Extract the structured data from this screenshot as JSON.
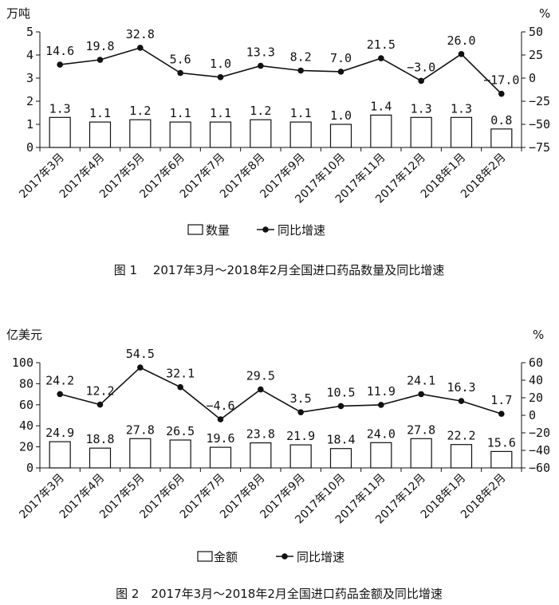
{
  "chart_data": [
    {
      "type": "bar",
      "title": "图 1　 2017年3月～2018年2月全国进口药品数量及同比增速",
      "ylabel": "万吨",
      "y2label": "%",
      "categories": [
        "2017年3月",
        "2017年4月",
        "2017年5月",
        "2017年6月",
        "2017年7月",
        "2017年8月",
        "2017年9月",
        "2017年10月",
        "2017年11月",
        "2017年12月",
        "2018年1月",
        "2018年2月"
      ],
      "series": [
        {
          "name": "数量",
          "type": "bar",
          "axis": "left",
          "values": [
            1.3,
            1.1,
            1.2,
            1.1,
            1.1,
            1.2,
            1.1,
            1.0,
            1.4,
            1.3,
            1.3,
            0.8
          ],
          "labels": [
            "1.3",
            "1.1",
            "1.2",
            "1.1",
            "1.1",
            "1.2",
            "1.1",
            "1.0",
            "1.4",
            "1.3",
            "1.3",
            "0.8"
          ]
        },
        {
          "name": "同比增速",
          "type": "line",
          "axis": "right",
          "values": [
            14.6,
            19.8,
            32.8,
            5.6,
            1.0,
            13.3,
            8.2,
            7.0,
            21.5,
            -3.0,
            26.0,
            -17.0
          ],
          "labels": [
            "14.6",
            "19.8",
            "32.8",
            "5.6",
            "1.0",
            "13.3",
            "8.2",
            "7.0",
            "21.5",
            "−3.0",
            "26.0",
            "−17.0"
          ]
        }
      ],
      "ylim": [
        0,
        5
      ],
      "yticks": [
        "0",
        "1",
        "2",
        "3",
        "4",
        "5"
      ],
      "y2lim": [
        -75,
        50
      ],
      "y2ticks": [
        "−75",
        "−50",
        "−25",
        "0",
        "25",
        "50"
      ],
      "legend_position": "bottom"
    },
    {
      "type": "bar",
      "title": "图 2　2017年3月～2018年2月全国进口药品金额及同比增速",
      "ylabel": "亿美元",
      "y2label": "%",
      "categories": [
        "2017年3月",
        "2017年4月",
        "2017年5月",
        "2017年6月",
        "2017年7月",
        "2017年8月",
        "2017年9月",
        "2017年10月",
        "2017年11月",
        "2017年12月",
        "2018年1月",
        "2018年2月"
      ],
      "series": [
        {
          "name": "金额",
          "type": "bar",
          "axis": "left",
          "values": [
            24.9,
            18.8,
            27.8,
            26.5,
            19.6,
            23.8,
            21.9,
            18.4,
            24.0,
            27.8,
            22.2,
            15.6
          ],
          "labels": [
            "24.9",
            "18.8",
            "27.8",
            "26.5",
            "19.6",
            "23.8",
            "21.9",
            "18.4",
            "24.0",
            "27.8",
            "22.2",
            "15.6"
          ]
        },
        {
          "name": "同比增速",
          "type": "line",
          "axis": "right",
          "values": [
            24.2,
            12.2,
            54.5,
            32.1,
            -4.6,
            29.5,
            3.5,
            10.5,
            11.9,
            24.1,
            16.3,
            1.7
          ],
          "labels": [
            "24.2",
            "12.2",
            "54.5",
            "32.1",
            "−4.6",
            "29.5",
            "3.5",
            "10.5",
            "11.9",
            "24.1",
            "16.3",
            "1.7"
          ]
        }
      ],
      "ylim": [
        0,
        100
      ],
      "yticks": [
        "0",
        "20",
        "40",
        "60",
        "80",
        "100"
      ],
      "y2lim": [
        -60,
        60
      ],
      "y2ticks": [
        "−60",
        "−40",
        "−20",
        "0",
        "20",
        "40",
        "60"
      ],
      "legend_position": "bottom"
    }
  ]
}
